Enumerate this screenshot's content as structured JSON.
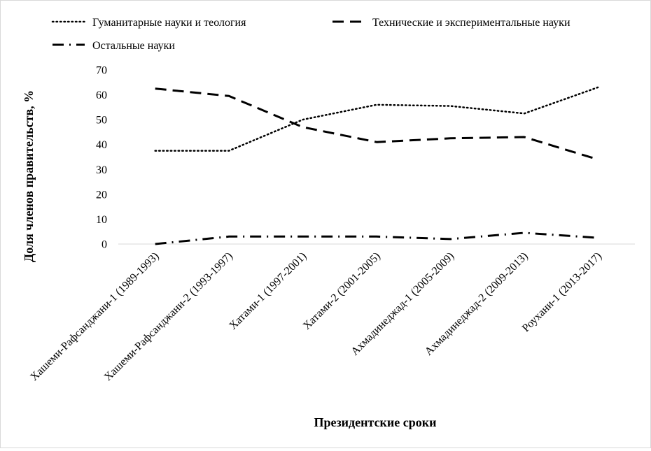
{
  "chart_data": {
    "type": "line",
    "title": "",
    "xlabel": "Президентские сроки",
    "ylabel": "Доля членов правительств, %",
    "ylim": [
      0,
      70
    ],
    "yticks": [
      "0",
      "10",
      "20",
      "30",
      "40",
      "50",
      "60",
      "70"
    ],
    "grid": false,
    "legend_position": "top",
    "categories": [
      "Хашеми-Рафсанджани-1 (1989-1993)",
      "Хашеми-Рафсанджани-2 (1993-1997)",
      "Хатами-1 (1997-2001)",
      "Хатами-2 (2001-2005)",
      "Ахмадинеджад-1 (2005-2009)",
      "Ахмадинеджад-2 (2009-2013)",
      "Роухани-1 (2013-2017)"
    ],
    "series": [
      {
        "name": "Гуманитарные науки и теология",
        "style": "dotted",
        "color": "#000000",
        "values": [
          37.5,
          37.5,
          50,
          56,
          55.5,
          52.5,
          63
        ]
      },
      {
        "name": "Технические и экспериментальные науки",
        "style": "dashed",
        "color": "#000000",
        "values": [
          62.5,
          59.5,
          47,
          41,
          42.5,
          43,
          34
        ]
      },
      {
        "name": "Остальные науки",
        "style": "dash-dot",
        "color": "#000000",
        "values": [
          0,
          3,
          3,
          3,
          2,
          4.5,
          2.5
        ]
      }
    ]
  }
}
